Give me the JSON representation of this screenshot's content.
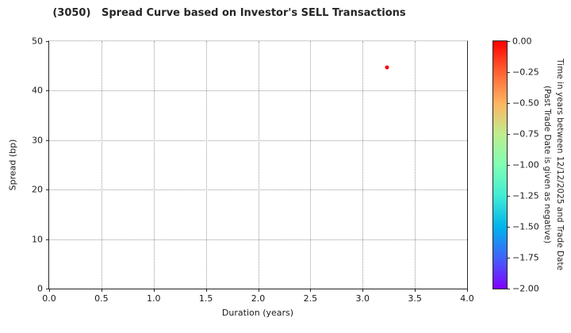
{
  "chart_data": {
    "type": "scatter",
    "title": "(3050)   Spread Curve based on Investor's SELL Transactions",
    "xlabel": "Duration (years)",
    "ylabel": "Spread (bp)",
    "xlim": [
      0.0,
      4.0
    ],
    "ylim": [
      0,
      50
    ],
    "x_ticks": [
      0.0,
      0.5,
      1.0,
      1.5,
      2.0,
      2.5,
      3.0,
      3.5,
      4.0
    ],
    "x_tick_labels": [
      "0.0",
      "0.5",
      "1.0",
      "1.5",
      "2.0",
      "2.5",
      "3.0",
      "3.5",
      "4.0"
    ],
    "y_ticks": [
      0,
      10,
      20,
      30,
      40,
      50
    ],
    "y_tick_labels": [
      "0",
      "10",
      "20",
      "30",
      "40",
      "50"
    ],
    "grid": "dotted",
    "legend_position": "none",
    "points": [
      {
        "x": 3.23,
        "y": 44.7,
        "color_value": 0.0,
        "color": "#ff0000"
      }
    ],
    "colorbar": {
      "label_line1": "Time in years between 12/12/2025 and Trade Date",
      "label_line2": "(Past Trade Date is given as negative)",
      "colormap": "rainbow",
      "vmax": 0.0,
      "vmin": -2.0,
      "tick_labels": [
        "0.00",
        "−0.25",
        "−0.50",
        "−0.75",
        "−1.00",
        "−1.25",
        "−1.50",
        "−1.75",
        "−2.00"
      ],
      "tick_values": [
        0.0,
        -0.25,
        -0.5,
        -0.75,
        -1.0,
        -1.25,
        -1.5,
        -1.75,
        -2.0
      ],
      "gradient_stops": [
        "#ff0000",
        "#ff6232",
        "#ffb461",
        "#bfec8e",
        "#80ffb4",
        "#40ecd4",
        "#00b4ec",
        "#4062fa",
        "#8000ff"
      ]
    }
  }
}
